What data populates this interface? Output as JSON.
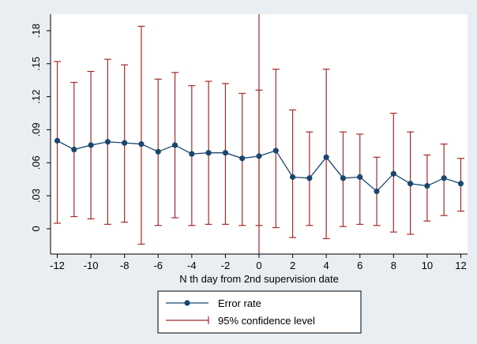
{
  "chart_data": {
    "type": "line",
    "title": "",
    "xlabel": "N th day from 2nd supervision date",
    "ylabel": "",
    "xlim": [
      -12.4,
      12.4
    ],
    "ylim": [
      -0.023,
      0.195
    ],
    "xticks": [
      -12,
      -10,
      -8,
      -6,
      -4,
      -2,
      0,
      2,
      4,
      6,
      8,
      10,
      12
    ],
    "yticks": [
      0,
      0.03,
      0.06,
      0.09,
      0.12,
      0.15,
      0.18
    ],
    "ytick_labels": [
      "0",
      ".03",
      ".06",
      ".09",
      ".12",
      ".15",
      ".18"
    ],
    "grid": false,
    "legend_position": "bottom",
    "x": [
      -12,
      -11,
      -10,
      -9,
      -8,
      -7,
      -6,
      -5,
      -4,
      -3,
      -2,
      -1,
      0,
      1,
      2,
      3,
      4,
      5,
      6,
      7,
      8,
      9,
      10,
      11,
      12
    ],
    "series": [
      {
        "name": "Error rate",
        "color": "#1a476f",
        "values": [
          0.08,
          0.072,
          0.076,
          0.079,
          0.078,
          0.077,
          0.07,
          0.076,
          0.068,
          0.069,
          0.069,
          0.064,
          0.066,
          0.071,
          0.047,
          0.046,
          0.065,
          0.046,
          0.047,
          0.034,
          0.05,
          0.041,
          0.039,
          0.046,
          0.041
        ]
      },
      {
        "name": "95% confidence level",
        "color": "#a52a2a",
        "lower": [
          0.005,
          0.011,
          0.009,
          0.004,
          0.006,
          -0.014,
          0.003,
          0.01,
          0.003,
          0.004,
          0.004,
          0.003,
          0.003,
          0.001,
          -0.008,
          0.003,
          -0.009,
          0.002,
          0.004,
          0.003,
          -0.003,
          -0.005,
          0.007,
          0.012,
          0.016
        ],
        "upper": [
          0.152,
          0.133,
          0.143,
          0.154,
          0.149,
          0.184,
          0.136,
          0.142,
          0.13,
          0.134,
          0.132,
          0.123,
          0.126,
          0.145,
          0.108,
          0.088,
          0.145,
          0.088,
          0.086,
          0.065,
          0.105,
          0.088,
          0.067,
          0.077,
          0.064
        ]
      }
    ],
    "reference_line": {
      "axis": "x",
      "value": 0,
      "color": "#a52a2a"
    }
  },
  "legend": {
    "items": [
      {
        "label": "Error rate",
        "kind": "marker-line",
        "color": "#1a476f"
      },
      {
        "label": "95% confidence level",
        "kind": "capped-line",
        "color": "#a52a2a"
      }
    ]
  },
  "colors": {
    "outer_background": "#e9eef2",
    "plot_background": "#ffffff",
    "axis": "#000000"
  }
}
